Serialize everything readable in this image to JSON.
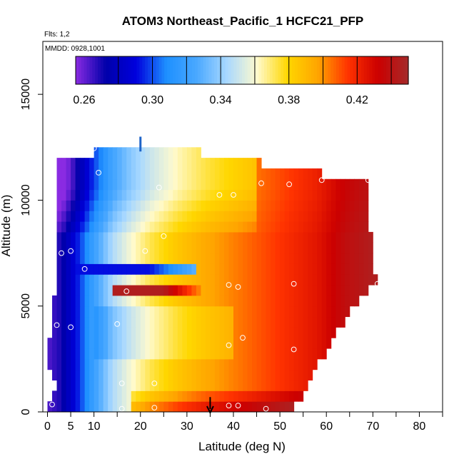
{
  "chart_data": {
    "type": "heatmap",
    "title": "ATOM3 Northeast_Pacific_1 HCFC21_PFP",
    "subtitle_flights": "Flts: 1,2",
    "subtitle_dates": "MMDD: 0928,1001",
    "xlabel": "Latitude (deg N)",
    "ylabel": "Altitude (m)",
    "xlim": [
      -1,
      85
    ],
    "ylim": [
      0,
      17500
    ],
    "x_ticks": [
      0,
      5,
      10,
      20,
      30,
      40,
      50,
      60,
      70,
      80
    ],
    "x_minor_ticks": [
      15,
      25,
      35,
      45,
      55,
      65,
      75,
      85
    ],
    "y_ticks": [
      0,
      5000,
      10000,
      15000
    ],
    "colorbar": {
      "min": 0.255,
      "max": 0.45,
      "tick_values": [
        0.26,
        0.3,
        0.34,
        0.38,
        0.42
      ],
      "tick_labels": [
        "0.26",
        "0.30",
        "0.34",
        "0.38",
        "0.42"
      ],
      "separators": [
        0.28,
        0.3,
        0.32,
        0.34,
        0.36,
        0.38,
        0.4,
        0.42,
        0.44
      ],
      "colors": [
        "#8a2be2",
        "#0000aa",
        "#0000dd",
        "#1e90ff",
        "#4aa8ff",
        "#a8d8ff",
        "#fffacd",
        "#ffd700",
        "#ffa500",
        "#ff3300",
        "#cc0000",
        "#a52a2a"
      ]
    },
    "grid": {
      "lat_step": 1,
      "alt_step": 500,
      "rows": [
        {
          "alt": 0,
          "lat_min": 0,
          "lat_max": 53
        },
        {
          "alt": 500,
          "lat_min": 1,
          "lat_max": 55
        },
        {
          "alt": 1000,
          "lat_min": 2,
          "lat_max": 56
        },
        {
          "alt": 1500,
          "lat_min": 1,
          "lat_max": 57
        },
        {
          "alt": 2000,
          "lat_min": 0,
          "lat_max": 58
        },
        {
          "alt": 2500,
          "lat_min": 0,
          "lat_max": 60
        },
        {
          "alt": 3000,
          "lat_min": 0,
          "lat_max": 61
        },
        {
          "alt": 3500,
          "lat_min": 1,
          "lat_max": 62
        },
        {
          "alt": 4000,
          "lat_min": 1,
          "lat_max": 64
        },
        {
          "alt": 4500,
          "lat_min": 1,
          "lat_max": 65
        },
        {
          "alt": 5000,
          "lat_min": 1,
          "lat_max": 67
        },
        {
          "alt": 5500,
          "lat_min": 2,
          "lat_max": 69
        },
        {
          "alt": 6000,
          "lat_min": 2,
          "lat_max": 71
        },
        {
          "alt": 6500,
          "lat_min": 2,
          "lat_max": 70
        },
        {
          "alt": 7000,
          "lat_min": 2,
          "lat_max": 70
        },
        {
          "alt": 7500,
          "lat_min": 2,
          "lat_max": 70
        },
        {
          "alt": 8000,
          "lat_min": 2,
          "lat_max": 70
        },
        {
          "alt": 8500,
          "lat_min": 2,
          "lat_max": 69
        },
        {
          "alt": 9000,
          "lat_min": 2,
          "lat_max": 69
        },
        {
          "alt": 9500,
          "lat_min": 2,
          "lat_max": 69
        },
        {
          "alt": 10000,
          "lat_min": 2,
          "lat_max": 69
        },
        {
          "alt": 10500,
          "lat_min": 2,
          "lat_max": 69
        },
        {
          "alt": 11000,
          "lat_min": 2,
          "lat_max": 59
        },
        {
          "alt": 11500,
          "lat_min": 2,
          "lat_max": 46
        },
        {
          "alt": 12000,
          "lat_min": 10,
          "lat_max": 33
        }
      ],
      "anomaly_bands": [
        {
          "alt_from": 5500,
          "alt_to": 6000,
          "lat_from": 14,
          "lat_to": 25,
          "value": 0.445,
          "fade_to": 0.4,
          "fade_lat": 33
        },
        {
          "alt_from": 6500,
          "alt_to": 7000,
          "lat_from": 6,
          "lat_to": 22,
          "value": 0.292,
          "fade_to": 0.33,
          "fade_lat": 32
        }
      ]
    },
    "observations": [
      {
        "lat": 1,
        "alt": 11900
      },
      {
        "lat": 10,
        "alt": 12450
      },
      {
        "lat": 11,
        "alt": 11300
      },
      {
        "lat": 24,
        "alt": 10600
      },
      {
        "lat": 37,
        "alt": 10250
      },
      {
        "lat": 40,
        "alt": 10250
      },
      {
        "lat": 46,
        "alt": 10800
      },
      {
        "lat": 52,
        "alt": 10750
      },
      {
        "lat": 59,
        "alt": 10950
      },
      {
        "lat": 69,
        "alt": 10950
      },
      {
        "lat": 25,
        "alt": 8300
      },
      {
        "lat": 21,
        "alt": 7600
      },
      {
        "lat": 3,
        "alt": 7500
      },
      {
        "lat": 5,
        "alt": 7600
      },
      {
        "lat": 8,
        "alt": 6750
      },
      {
        "lat": 17,
        "alt": 5700
      },
      {
        "lat": 39,
        "alt": 6000
      },
      {
        "lat": 41,
        "alt": 5900
      },
      {
        "lat": 53,
        "alt": 6050
      },
      {
        "lat": 71,
        "alt": 6050
      },
      {
        "lat": 2,
        "alt": 4100
      },
      {
        "lat": 5,
        "alt": 4000
      },
      {
        "lat": 15,
        "alt": 4150
      },
      {
        "lat": 42,
        "alt": 3500
      },
      {
        "lat": 39,
        "alt": 3150
      },
      {
        "lat": 53,
        "alt": 2950
      },
      {
        "lat": 0,
        "alt": 1450
      },
      {
        "lat": 16,
        "alt": 1350
      },
      {
        "lat": 23,
        "alt": 1350
      },
      {
        "lat": 1,
        "alt": 350
      },
      {
        "lat": 16,
        "alt": 150
      },
      {
        "lat": 23,
        "alt": 200
      },
      {
        "lat": 39,
        "alt": 300
      },
      {
        "lat": 41,
        "alt": 300
      },
      {
        "lat": 47,
        "alt": 150
      },
      {
        "lat": 54,
        "alt": 300
      }
    ],
    "marker_top": {
      "lat": 20,
      "alt_from": 12300,
      "alt_to": 13000,
      "color": "#1e64c8"
    },
    "marker_arrow": {
      "lat": 35,
      "alt_from": 700,
      "alt_to": 0,
      "color": "#000000"
    }
  }
}
